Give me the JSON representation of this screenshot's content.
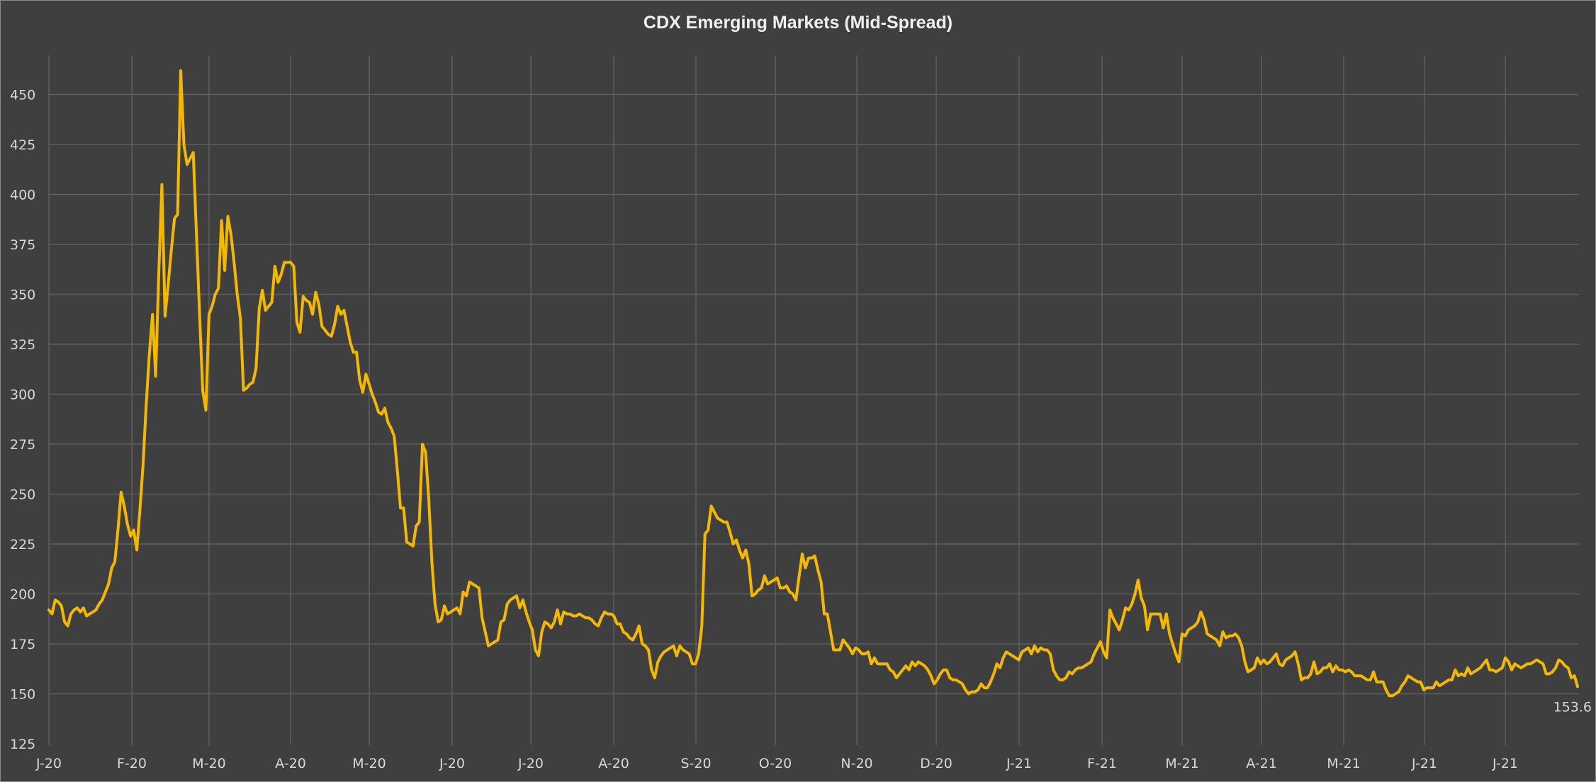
{
  "chart_data": {
    "type": "line",
    "title": "CDX Emerging Markets (Mid-Spread)",
    "xlabel": "",
    "ylabel": "",
    "ylim": [
      125,
      470
    ],
    "yticks": [
      125,
      150,
      175,
      200,
      225,
      250,
      275,
      300,
      325,
      350,
      375,
      400,
      425,
      450
    ],
    "xticks": [
      "J-20",
      "F-20",
      "M-20",
      "A-20",
      "M-20",
      "J-20",
      "J-20",
      "A-20",
      "S-20",
      "O-20",
      "N-20",
      "D-20",
      "J-21",
      "F-21",
      "M-21",
      "A-21",
      "M-21",
      "J-21",
      "J-21"
    ],
    "grid": true,
    "line_color": "#f5b800",
    "last_value_label": "153.6",
    "series": [
      {
        "values": [
          192,
          190,
          197,
          196,
          194,
          186,
          184,
          190,
          192,
          193,
          191,
          193,
          189,
          190,
          191,
          192,
          195,
          197,
          201,
          205,
          213,
          216,
          232,
          251,
          244,
          235,
          229,
          232,
          222,
          242,
          265,
          295,
          320,
          340,
          309,
          360,
          405,
          339,
          355,
          372,
          388,
          390,
          462,
          425,
          415,
          418,
          421,
          380,
          340,
          302,
          292,
          340,
          344,
          350,
          353,
          387,
          362,
          389,
          380,
          366,
          350,
          338,
          302,
          303,
          305,
          306,
          313,
          343,
          352,
          342,
          344,
          346,
          364,
          356,
          360,
          366,
          366,
          366,
          364,
          336,
          331,
          349,
          347,
          346,
          340,
          351,
          345,
          334,
          332,
          330,
          329,
          335,
          344,
          340,
          342,
          334,
          326,
          321,
          321,
          307,
          301,
          310,
          305,
          300,
          296,
          291,
          290,
          293,
          286,
          283,
          279,
          262,
          243,
          243,
          226,
          225,
          224,
          234,
          236,
          275,
          271,
          248,
          216,
          195,
          186,
          187,
          194,
          190,
          191,
          192,
          193,
          190,
          201,
          199,
          206,
          205,
          204,
          203,
          188,
          181,
          174,
          175,
          176,
          177,
          186,
          187,
          195,
          197,
          198,
          199,
          193,
          197,
          191,
          186,
          182,
          172,
          169,
          181,
          186,
          185,
          183,
          186,
          192,
          185,
          191,
          190,
          190,
          189,
          189,
          190,
          189,
          188,
          188,
          187,
          185,
          184,
          188,
          191,
          190,
          190,
          189,
          185,
          185,
          181,
          180,
          178,
          177,
          180,
          184,
          175,
          174,
          172,
          162,
          158,
          166,
          169,
          171,
          172,
          173,
          174,
          169,
          174,
          172,
          171,
          170,
          165,
          165,
          170,
          184,
          230,
          232,
          244,
          241,
          238,
          237,
          236,
          236,
          231,
          225,
          227,
          222,
          218,
          222,
          215,
          199,
          200,
          202,
          203,
          209,
          205,
          206,
          207,
          208,
          203,
          203,
          204,
          201,
          200,
          197,
          209,
          220,
          213,
          218,
          218,
          219,
          212,
          206,
          190,
          190,
          181,
          172,
          172,
          172,
          177,
          175,
          173,
          170,
          173,
          172,
          170,
          170,
          171,
          165,
          168,
          165,
          165,
          165,
          165,
          162,
          161,
          158,
          160,
          162,
          164,
          162,
          166,
          164,
          166,
          165,
          164,
          162,
          159,
          155,
          157,
          160,
          162,
          162,
          158,
          157,
          157,
          156,
          155,
          152,
          150,
          151,
          151,
          152,
          155,
          153,
          153,
          156,
          160,
          165,
          163,
          168,
          171,
          170,
          169,
          168,
          167,
          171,
          172,
          173,
          170,
          174,
          171,
          173,
          172,
          172,
          170,
          162,
          159,
          157,
          157,
          158,
          161,
          160,
          162,
          163,
          163,
          164,
          165,
          166,
          170,
          173,
          176,
          171,
          168,
          192,
          188,
          185,
          182,
          187,
          193,
          192,
          195,
          200,
          207,
          198,
          194,
          182,
          190,
          190,
          190,
          190,
          183,
          190,
          180,
          175,
          170,
          166,
          180,
          179,
          182,
          183,
          184,
          186,
          191,
          187,
          180,
          179,
          178,
          177,
          174,
          181,
          178,
          179,
          179,
          180,
          178,
          174,
          166,
          161,
          162,
          163,
          168,
          165,
          167,
          165,
          166,
          168,
          170,
          165,
          164,
          167,
          168,
          169,
          171,
          165,
          157,
          158,
          158,
          160,
          166,
          160,
          161,
          163,
          163,
          165,
          161,
          164,
          162,
          162,
          161,
          162,
          161,
          159,
          159,
          159,
          158,
          157,
          157,
          161,
          156,
          156,
          156,
          152,
          149,
          149,
          150,
          151,
          154,
          156,
          159,
          158,
          157,
          156,
          156,
          152,
          153,
          153,
          153,
          156,
          154,
          155,
          156,
          157,
          157,
          162,
          159,
          160,
          159,
          163,
          160,
          161,
          162,
          163,
          165,
          167,
          162,
          162,
          161,
          162,
          163,
          168,
          166,
          162,
          165,
          164,
          163,
          164,
          165,
          165,
          166,
          167,
          166,
          165,
          160,
          160,
          161,
          163,
          167,
          166,
          164,
          163,
          158,
          159,
          153.6
        ]
      }
    ]
  }
}
